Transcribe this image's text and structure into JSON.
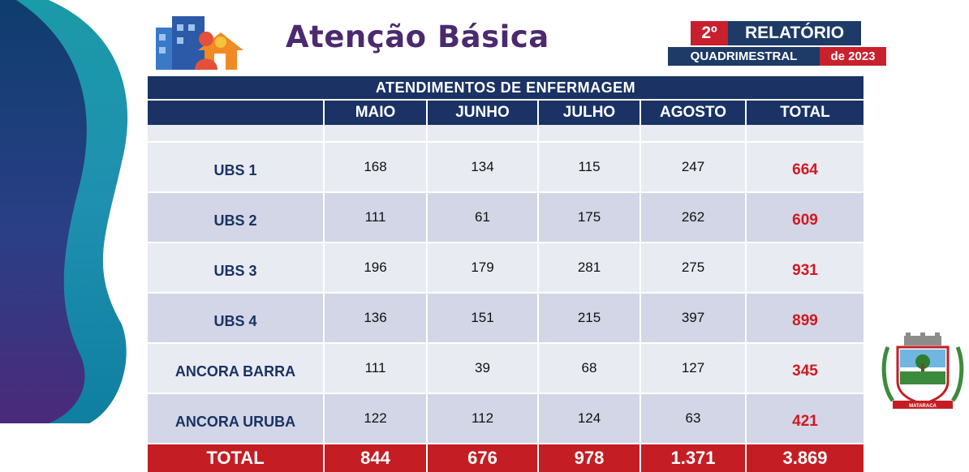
{
  "header": {
    "title": "Atenção Básica",
    "logo_icon": "family-home-icon",
    "report_number": "2º",
    "report_word": "RELATÓRIO",
    "report_period": "QUADRIMESTRAL",
    "report_year": "de 2023"
  },
  "table": {
    "caption": "ATENDIMENTOS DE ENFERMAGEM",
    "columns": [
      "",
      "MAIO",
      "JUNHO",
      "JULHO",
      "AGOSTO",
      "TOTAL"
    ],
    "rows": [
      {
        "name": "UBS 1",
        "values": [
          "168",
          "134",
          "115",
          "247"
        ],
        "total": "664"
      },
      {
        "name": "UBS 2",
        "values": [
          "111",
          "61",
          "175",
          "262"
        ],
        "total": "609"
      },
      {
        "name": "UBS 3",
        "values": [
          "196",
          "179",
          "281",
          "275"
        ],
        "total": "931"
      },
      {
        "name": "UBS 4",
        "values": [
          "136",
          "151",
          "215",
          "397"
        ],
        "total": "899"
      },
      {
        "name": "ANCORA BARRA",
        "values": [
          "111",
          "39",
          "68",
          "127"
        ],
        "total": "345"
      },
      {
        "name": "ANCORA URUBA",
        "values": [
          "122",
          "112",
          "124",
          "63"
        ],
        "total": "421"
      }
    ],
    "footer": {
      "label": "TOTAL",
      "values": [
        "844",
        "676",
        "978",
        "1.371"
      ],
      "total": "3.869"
    }
  },
  "seal": {
    "icon": "municipal-coat-of-arms-icon",
    "text": "MATARACA"
  },
  "colors": {
    "navy": "#1a3264",
    "red": "#c41e24",
    "purple": "#4b2a6f",
    "row_light": "#e9ebf3",
    "row_dark": "#d2d6e6"
  }
}
